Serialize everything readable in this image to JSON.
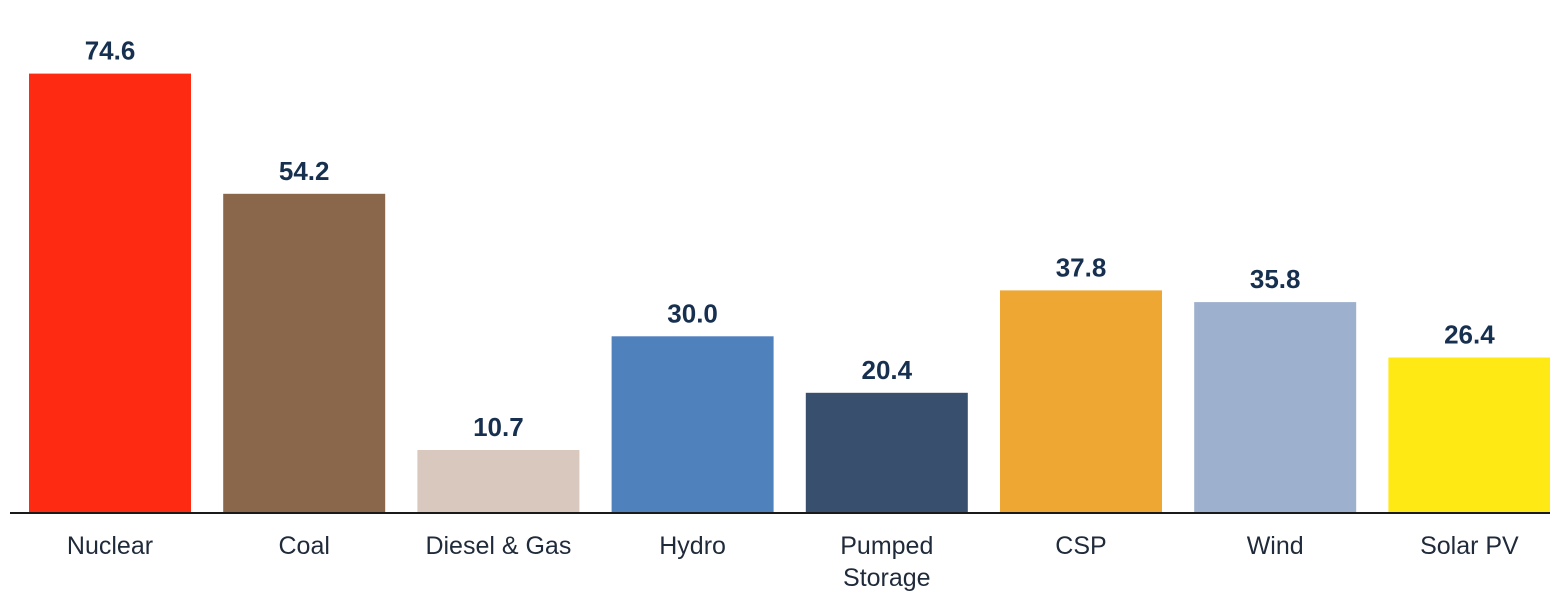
{
  "chart_data": {
    "type": "bar",
    "categories": [
      "Nuclear",
      "Coal",
      "Diesel & Gas",
      "Hydro",
      "Pumped Storage",
      "CSP",
      "Wind",
      "Solar PV"
    ],
    "values": [
      74.6,
      54.2,
      10.7,
      30.0,
      20.4,
      37.8,
      35.8,
      26.4
    ],
    "value_labels": [
      "74.6",
      "54.2",
      "10.7",
      "30.0",
      "20.4",
      "37.8",
      "35.8",
      "26.4"
    ],
    "colors": [
      "#ff2a12",
      "#8a674b",
      "#d9c8bd",
      "#4f81bd",
      "#384f6e",
      "#eea733",
      "#9db1ce",
      "#ffe915"
    ],
    "ylim": [
      0,
      80
    ],
    "grid": false,
    "legend": "none",
    "title": "",
    "xlabel": "",
    "ylabel": ""
  }
}
